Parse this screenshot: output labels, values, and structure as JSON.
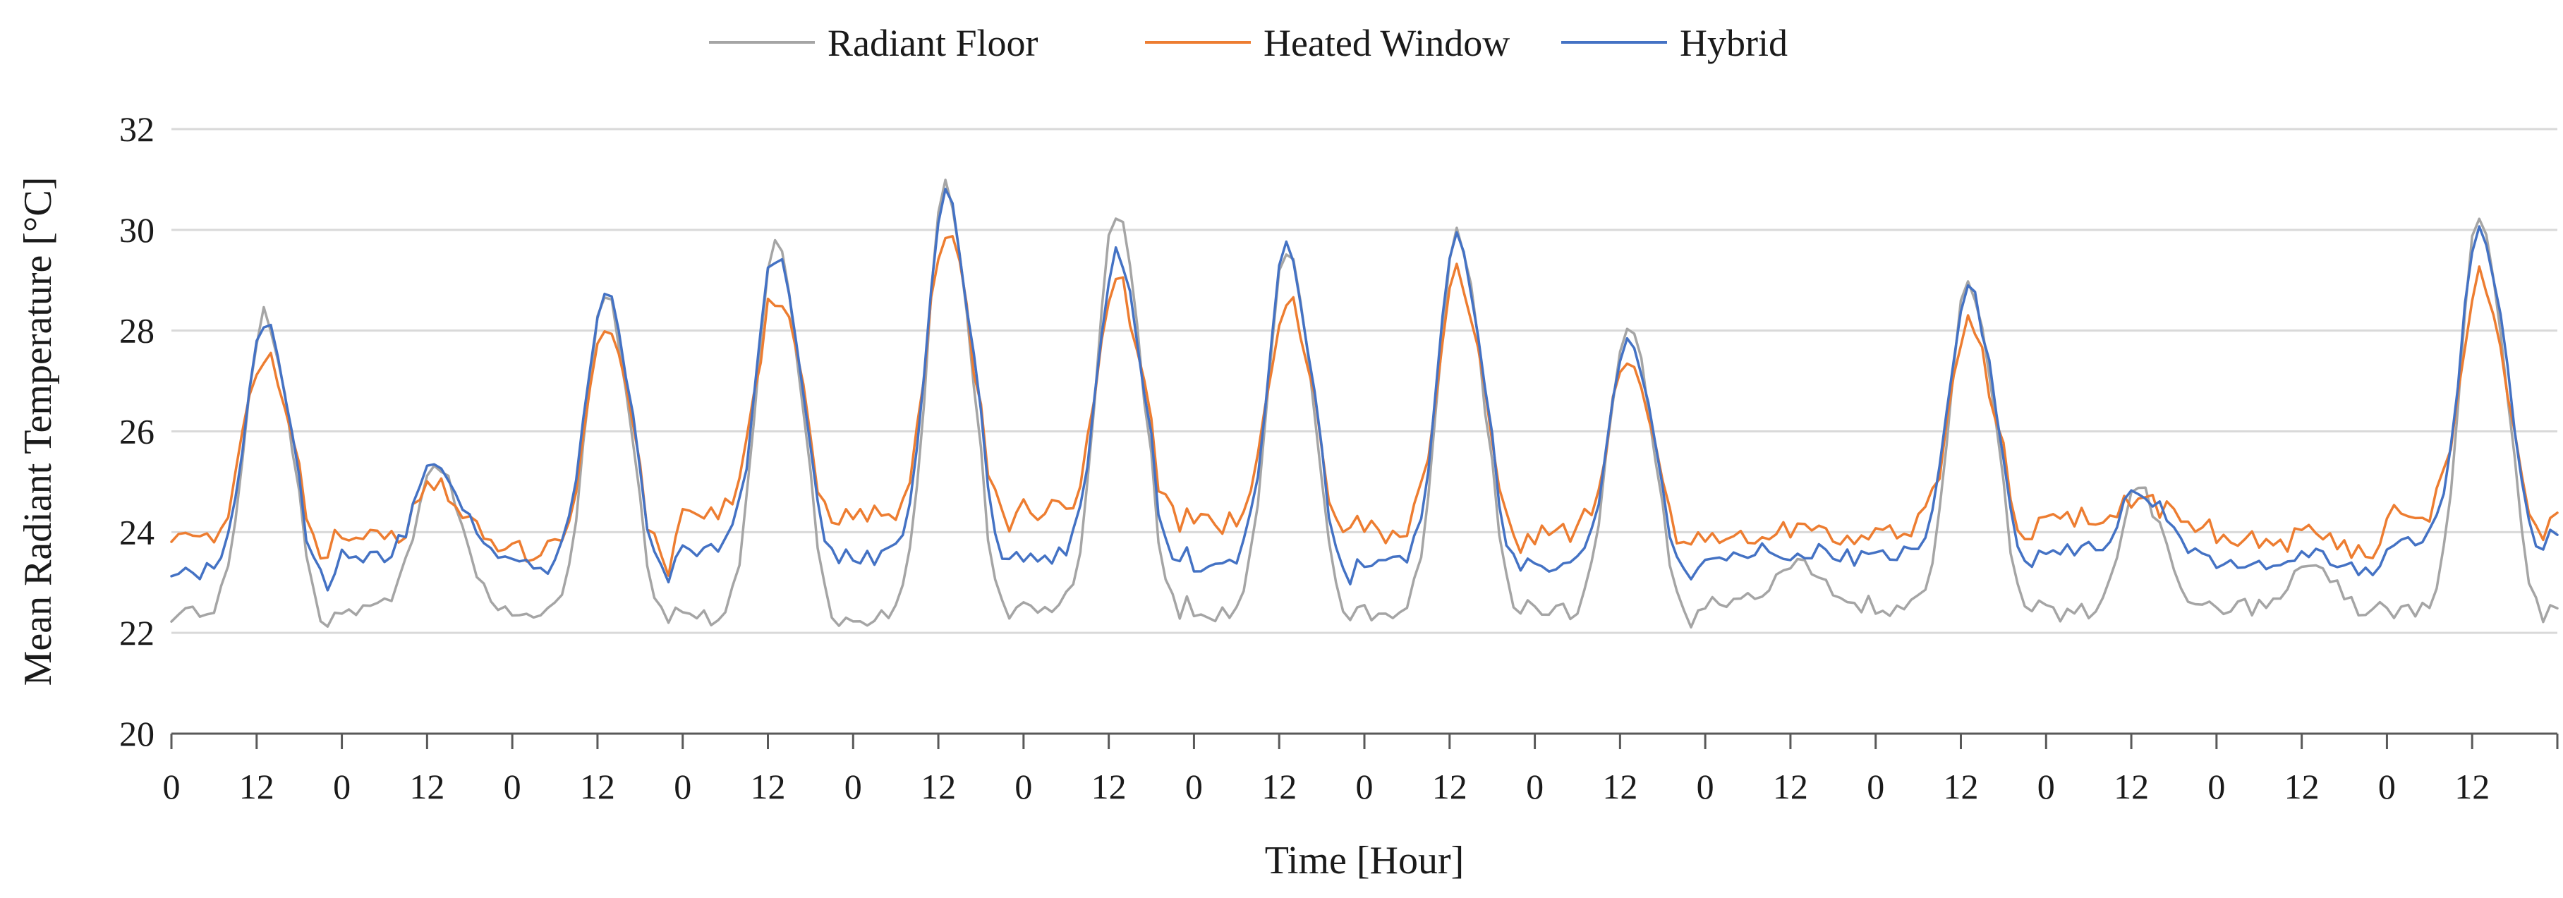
{
  "chart_data": {
    "type": "line",
    "title": "",
    "xlabel": "Time [Hour]",
    "ylabel": "Mean Radiant Temperature [°C]",
    "ylim": [
      20,
      32
    ],
    "yticks": [
      20,
      22,
      24,
      26,
      28,
      30,
      32
    ],
    "grid": "horizontal",
    "legend_position": "top-center",
    "hours_total": 336,
    "x_tick_labels": [
      "0",
      "12",
      "0",
      "12",
      "0",
      "12",
      "0",
      "12",
      "0",
      "12",
      "0",
      "12",
      "0",
      "12",
      "0",
      "12",
      "0",
      "12",
      "0",
      "12",
      "0",
      "12",
      "0",
      "12",
      "0",
      "12",
      "0",
      "12"
    ],
    "days": 14,
    "series": [
      {
        "name": "Radiant Floor",
        "color": "#a5a5a5",
        "daily": [
          {
            "base": 22.4,
            "peak": 28.3
          },
          {
            "base": 22.5,
            "peak": 25.4
          },
          {
            "base": 22.4,
            "peak": 28.7
          },
          {
            "base": 22.3,
            "peak": 29.7
          },
          {
            "base": 22.3,
            "peak": 30.9
          },
          {
            "base": 22.5,
            "peak": 30.3
          },
          {
            "base": 22.4,
            "peak": 29.6
          },
          {
            "base": 22.4,
            "peak": 29.9
          },
          {
            "base": 22.4,
            "peak": 28.1
          },
          {
            "base": 22.6,
            "peak": 23.4
          },
          {
            "base": 22.5,
            "peak": 29.0
          },
          {
            "base": 22.4,
            "peak": 24.8
          },
          {
            "base": 22.5,
            "peak": 23.3
          },
          {
            "base": 22.4,
            "peak": 30.3
          }
        ]
      },
      {
        "name": "Heated Window",
        "color": "#ed7d31",
        "daily": [
          {
            "base": 23.9,
            "peak": 27.6
          },
          {
            "base": 23.8,
            "peak": 24.9
          },
          {
            "base": 23.6,
            "peak": 28.2
          },
          {
            "base": 24.4,
            "peak": 28.7
          },
          {
            "base": 24.3,
            "peak": 30.0
          },
          {
            "base": 24.4,
            "peak": 29.0
          },
          {
            "base": 24.2,
            "peak": 28.6
          },
          {
            "base": 24.0,
            "peak": 29.2
          },
          {
            "base": 24.0,
            "peak": 27.3
          },
          {
            "base": 23.9,
            "peak": 24.0
          },
          {
            "base": 24.0,
            "peak": 28.1
          },
          {
            "base": 24.3,
            "peak": 24.6
          },
          {
            "base": 23.8,
            "peak": 23.9
          },
          {
            "base": 24.3,
            "peak": 29.1
          }
        ]
      },
      {
        "name": "Hybrid",
        "color": "#4472c4",
        "daily": [
          {
            "base": 23.2,
            "peak": 28.2
          },
          {
            "base": 23.5,
            "peak": 25.3
          },
          {
            "base": 23.3,
            "peak": 28.8
          },
          {
            "base": 23.6,
            "peak": 29.5
          },
          {
            "base": 23.5,
            "peak": 30.7
          },
          {
            "base": 23.5,
            "peak": 29.5
          },
          {
            "base": 23.3,
            "peak": 29.6
          },
          {
            "base": 23.4,
            "peak": 29.8
          },
          {
            "base": 23.3,
            "peak": 27.8
          },
          {
            "base": 23.6,
            "peak": 23.6
          },
          {
            "base": 23.6,
            "peak": 28.8
          },
          {
            "base": 23.6,
            "peak": 24.8
          },
          {
            "base": 23.4,
            "peak": 23.5
          },
          {
            "base": 23.8,
            "peak": 30.0
          }
        ]
      }
    ]
  }
}
